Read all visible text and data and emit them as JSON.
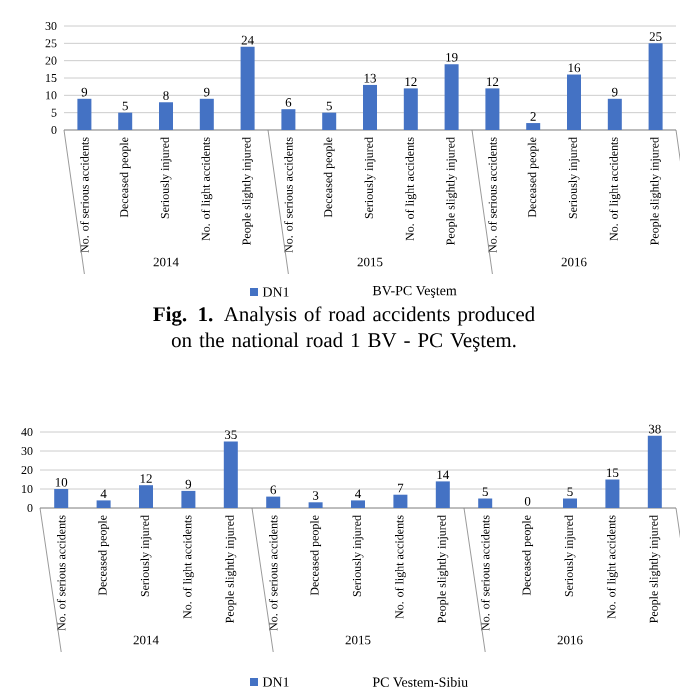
{
  "chart_data": [
    {
      "type": "bar",
      "categories": [
        "No. of serious accidents",
        "Deceased people",
        "Seriously injured",
        "No. of light accidents",
        "People slightly injured",
        "No. of serious accidents",
        "Deceased people",
        "Seriously injured",
        "No. of light accidents",
        "People slightly injured",
        "No. of serious accidents",
        "Deceased people",
        "Seriously injured",
        "No. of light accidents",
        "People slightly injured"
      ],
      "series": [
        {
          "name": "DN1",
          "color": "#4472c4",
          "values": [
            9,
            5,
            8,
            9,
            24,
            6,
            5,
            13,
            12,
            19,
            12,
            2,
            16,
            9,
            25
          ]
        }
      ],
      "ylim": [
        0,
        30
      ],
      "yticks": [
        0,
        5,
        10,
        15,
        20,
        25,
        30
      ],
      "grid": "y",
      "data_labels": true,
      "legend": "bottom",
      "legend_title": "BV-PC Veştem",
      "annotations": [
        "2014",
        "2015",
        "2016",
        "**Fig. 1.** Analysis of road accidents produced on the national road 1 BV - PC Veştem."
      ]
    },
    {
      "type": "bar",
      "categories": [
        "No. of serious accidents",
        "Deceased people",
        "Seriously injured",
        "No. of light accidents",
        "People slightly injured",
        "No. of serious accidents",
        "Deceased people",
        "Seriously injured",
        "No. of light accidents",
        "People slightly injured",
        "No. of serious accidents",
        "Deceased people",
        "Seriously injured",
        "No. of light accidents",
        "People slightly injured"
      ],
      "series": [
        {
          "name": "DN1",
          "color": "#4472c4",
          "values": [
            10,
            4,
            12,
            9,
            35,
            6,
            3,
            4,
            7,
            14,
            5,
            0,
            5,
            15,
            38
          ]
        }
      ],
      "ylim": [
        0,
        40
      ],
      "yticks": [
        0,
        10,
        20,
        30,
        40
      ],
      "grid": "y",
      "data_labels": true,
      "legend": "bottom",
      "legend_title": "PC Vestem-Sibiu",
      "annotations": [
        "2014",
        "2015",
        "2016"
      ]
    }
  ]
}
